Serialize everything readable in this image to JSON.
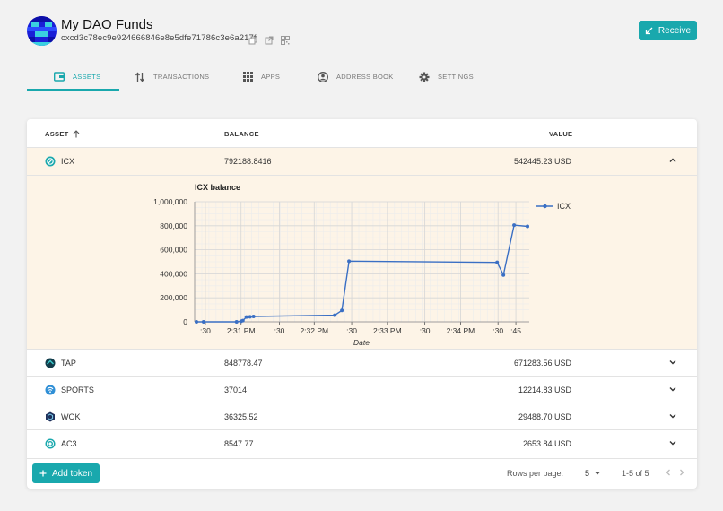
{
  "header": {
    "safe_name": "My DAO Funds",
    "address": "cxcd3c78ec9e924666846e8e5dfe71786c3e6a217f",
    "receive_label": "Receive",
    "accent": "#19a8ad"
  },
  "tabs": [
    {
      "label": "ASSETS",
      "icon": "wallet-icon",
      "active": true
    },
    {
      "label": "TRANSACTIONS",
      "icon": "swap-arrows-icon",
      "active": false
    },
    {
      "label": "APPS",
      "icon": "grid-icon",
      "active": false
    },
    {
      "label": "ADDRESS BOOK",
      "icon": "person-circle-icon",
      "active": false
    },
    {
      "label": "SETTINGS",
      "icon": "gear-icon",
      "active": false
    }
  ],
  "table": {
    "headers": {
      "asset": "ASSET",
      "balance": "BALANCE",
      "value": "VALUE"
    },
    "rows": [
      {
        "token": "ICX",
        "balance": "792188.8416",
        "value": "542445.23 USD",
        "expanded": true,
        "icon": "icx-icon"
      },
      {
        "token": "TAP",
        "balance": "848778.47",
        "value": "671283.56 USD",
        "expanded": false,
        "icon": "tap-icon"
      },
      {
        "token": "SPORTS",
        "balance": "37014",
        "value": "12214.83 USD",
        "expanded": false,
        "icon": "sports-icon"
      },
      {
        "token": "WOK",
        "balance": "36325.52",
        "value": "29488.70 USD",
        "expanded": false,
        "icon": "wok-icon"
      },
      {
        "token": "AC3",
        "balance": "8547.77",
        "value": "2653.84 USD",
        "expanded": false,
        "icon": "ac3-icon"
      }
    ]
  },
  "chart_data": {
    "type": "line",
    "title": "ICX balance",
    "xlabel": "Date",
    "ylabel": "",
    "series": [
      {
        "name": "ICX",
        "color": "#3a6fc4",
        "points": [
          {
            "t": 2,
            "y": 0
          },
          {
            "t": 10,
            "y": 0
          },
          {
            "t": 47,
            "y": 0
          },
          {
            "t": 52,
            "y": 5000
          },
          {
            "t": 54,
            "y": 10000
          },
          {
            "t": 58,
            "y": 40000
          },
          {
            "t": 62,
            "y": 42000
          },
          {
            "t": 66,
            "y": 45000
          },
          {
            "t": 157,
            "y": 55000
          },
          {
            "t": 165,
            "y": 95000
          },
          {
            "t": 173,
            "y": 505000
          },
          {
            "t": 339,
            "y": 495000
          },
          {
            "t": 346,
            "y": 390000
          },
          {
            "t": 358,
            "y": 805000
          },
          {
            "t": 373,
            "y": 795000
          }
        ]
      }
    ],
    "ylim": [
      0,
      1000000
    ],
    "yticks": [
      "0",
      "200,000",
      "400,000",
      "600,000",
      "800,000",
      "1,000,000"
    ],
    "xlim": [
      0,
      375
    ],
    "xticks": [
      {
        "t": 12,
        "label": ":30"
      },
      {
        "t": 52,
        "label": "2:31 PM"
      },
      {
        "t": 95,
        "label": ":30"
      },
      {
        "t": 134,
        "label": "2:32 PM"
      },
      {
        "t": 176,
        "label": ":30"
      },
      {
        "t": 216,
        "label": "2:33 PM"
      },
      {
        "t": 258,
        "label": ":30"
      },
      {
        "t": 298,
        "label": "2:34 PM"
      },
      {
        "t": 340,
        "label": ":30"
      },
      {
        "t": 360,
        "label": ":45"
      }
    ],
    "grid": true,
    "legend": "top-right"
  },
  "footer": {
    "add_token_label": "Add token",
    "rows_per_page_label": "Rows per page:",
    "rows_per_page_value": "5",
    "range_label": "1-5 of 5"
  }
}
